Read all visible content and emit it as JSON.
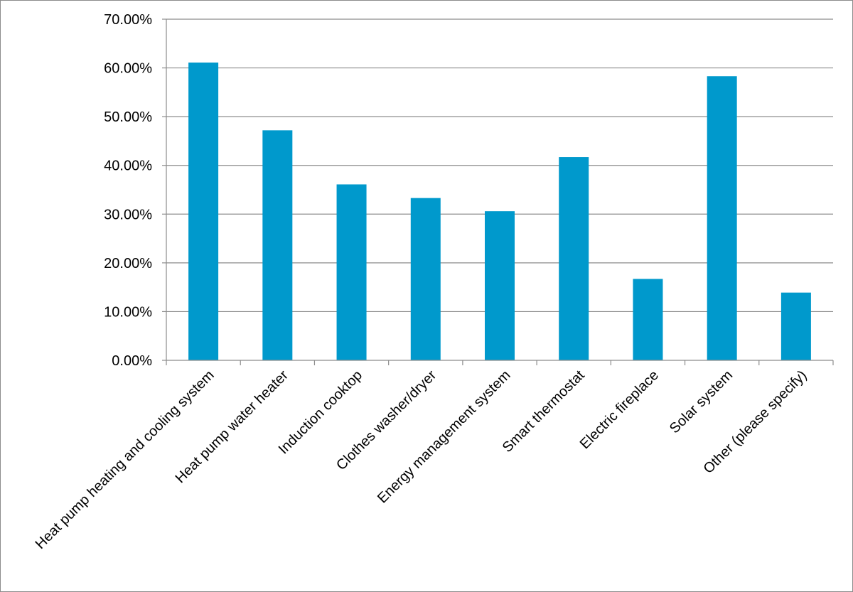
{
  "chart_data": {
    "type": "bar",
    "title": "",
    "xlabel": "",
    "ylabel": "",
    "categories": [
      "Heat pump heating and cooling system",
      "Heat pump water heater",
      "Induction cooktop",
      "Clothes washer/dryer",
      "Energy management system",
      "Smart thermostat",
      "Electric fireplace",
      "Solar system",
      "Other (please specify)"
    ],
    "series": [
      {
        "values": [
          61.1,
          47.2,
          36.1,
          33.3,
          30.6,
          41.7,
          16.7,
          58.3,
          13.9
        ]
      }
    ],
    "ylim": [
      0,
      70
    ],
    "yticks": [
      0,
      10,
      20,
      30,
      40,
      50,
      60,
      70
    ],
    "ytick_labels": [
      "0.00%",
      "10.00%",
      "20.00%",
      "30.00%",
      "40.00%",
      "50.00%",
      "60.00%",
      "70.00%"
    ],
    "grid": "horizontal",
    "legend": "none",
    "bar_color": "#0099cc",
    "grid_color": "#8c8c8c"
  }
}
